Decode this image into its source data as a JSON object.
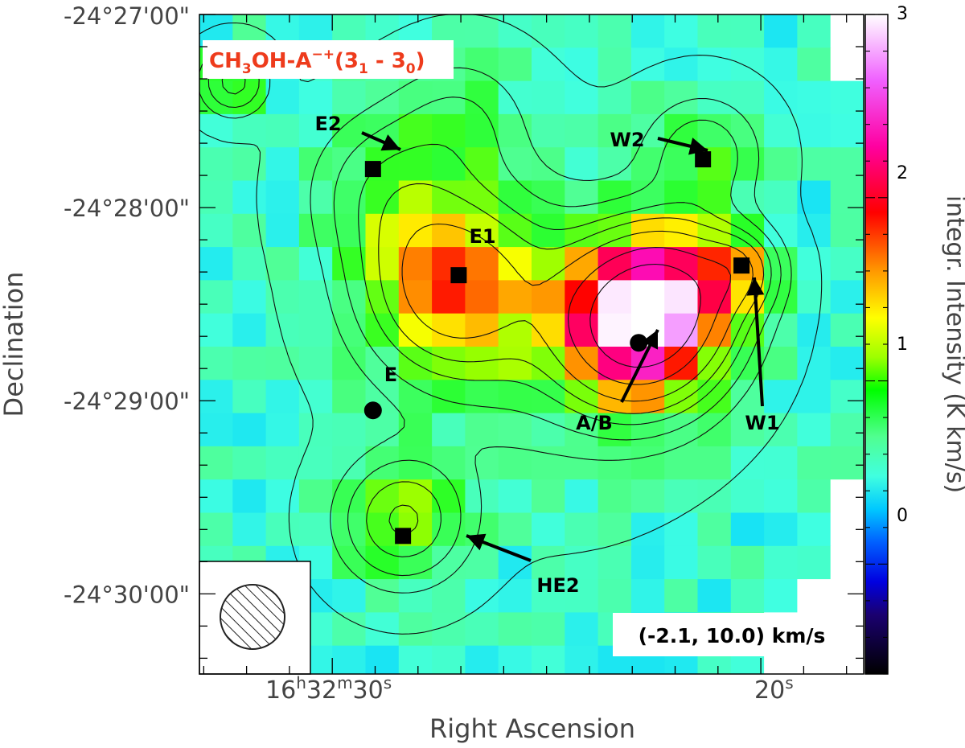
{
  "chart_data": {
    "type": "heatmap",
    "title": "CH3OH-A-+(31 - 30)",
    "title_parts": {
      "base": "CH",
      "sub1": "3",
      "mid": "OH-A",
      "sup": "−+",
      "open": "(3",
      "sub2": "1",
      "dash": " - 3",
      "sub3": "0",
      "close": ")"
    },
    "velocity_label": "(-2.1, 10.0) km/s",
    "xlabel": "Right Ascension",
    "ylabel": "Declination",
    "colorbar_label": "integr. Intensity (K km/s)",
    "colorbar": {
      "min": -0.6,
      "max": 3.0,
      "ticks": [
        "0",
        "1",
        "2",
        "3"
      ]
    },
    "x_ticks": [
      {
        "h": "16",
        "hu": "h",
        "m": "32",
        "mu": "m",
        "s": "30",
        "su": "s",
        "ra_sec": 30
      },
      {
        "s": "20",
        "su": "s",
        "ra_sec": 20
      }
    ],
    "y_ticks": [
      {
        "label": "-24°27'00\"",
        "dec_arcmin": -27
      },
      {
        "label": "-24°28'00\"",
        "dec_arcmin": -28
      },
      {
        "label": "-24°29'00\"",
        "dec_arcmin": -29
      },
      {
        "label": "-24°30'00\"",
        "dec_arcmin": -30
      }
    ],
    "sources": [
      {
        "name": "E2",
        "marker": "square",
        "ra_sec": 29.05,
        "dec_arcmin": -27.8
      },
      {
        "name": "W2",
        "marker": "square",
        "ra_sec": 21.35,
        "dec_arcmin": -27.75
      },
      {
        "name": "E1",
        "marker": "square",
        "ra_sec": 27.05,
        "dec_arcmin": -28.35
      },
      {
        "name": "W1",
        "marker": "square",
        "ra_sec": 20.45,
        "dec_arcmin": -28.3
      },
      {
        "name": "A/B",
        "marker": "circle",
        "ra_sec": 22.85,
        "dec_arcmin": -28.7
      },
      {
        "name": "E",
        "marker": "circle",
        "ra_sec": 29.05,
        "dec_arcmin": -29.05
      },
      {
        "name": "HE2",
        "marker": "square",
        "ra_sec": 28.35,
        "dec_arcmin": -29.7
      }
    ],
    "peaks": [
      {
        "ra_sec": 22.85,
        "dec_arcmin": -28.6,
        "amp": 2.6,
        "sigma_arcsec": 16
      },
      {
        "ra_sec": 21.85,
        "dec_arcmin": -28.4,
        "amp": 0.9,
        "sigma_arcsec": 14
      },
      {
        "ra_sec": 27.2,
        "dec_arcmin": -28.4,
        "amp": 1.2,
        "sigma_arcsec": 18
      },
      {
        "ra_sec": 28.35,
        "dec_arcmin": -29.62,
        "amp": 0.75,
        "sigma_arcsec": 13
      },
      {
        "ra_sec": 20.5,
        "dec_arcmin": -28.32,
        "amp": 0.7,
        "sigma_arcsec": 8
      },
      {
        "ra_sec": 21.35,
        "dec_arcmin": -27.72,
        "amp": 0.45,
        "sigma_arcsec": 12
      },
      {
        "ra_sec": 28.7,
        "dec_arcmin": -27.9,
        "amp": 0.45,
        "sigma_arcsec": 16
      },
      {
        "ra_sec": 25.0,
        "dec_arcmin": -28.6,
        "amp": 0.35,
        "sigma_arcsec": 30
      },
      {
        "ra_sec": 27.0,
        "dec_arcmin": -27.55,
        "amp": 0.3,
        "sigma_arcsec": 14
      },
      {
        "ra_sec": 32.3,
        "dec_arcmin": -27.35,
        "amp": 0.6,
        "sigma_arcsec": 7
      }
    ],
    "contour_levels": [
      0.3,
      0.45,
      0.6,
      0.8,
      1.0,
      1.3,
      1.8,
      2.4
    ]
  }
}
